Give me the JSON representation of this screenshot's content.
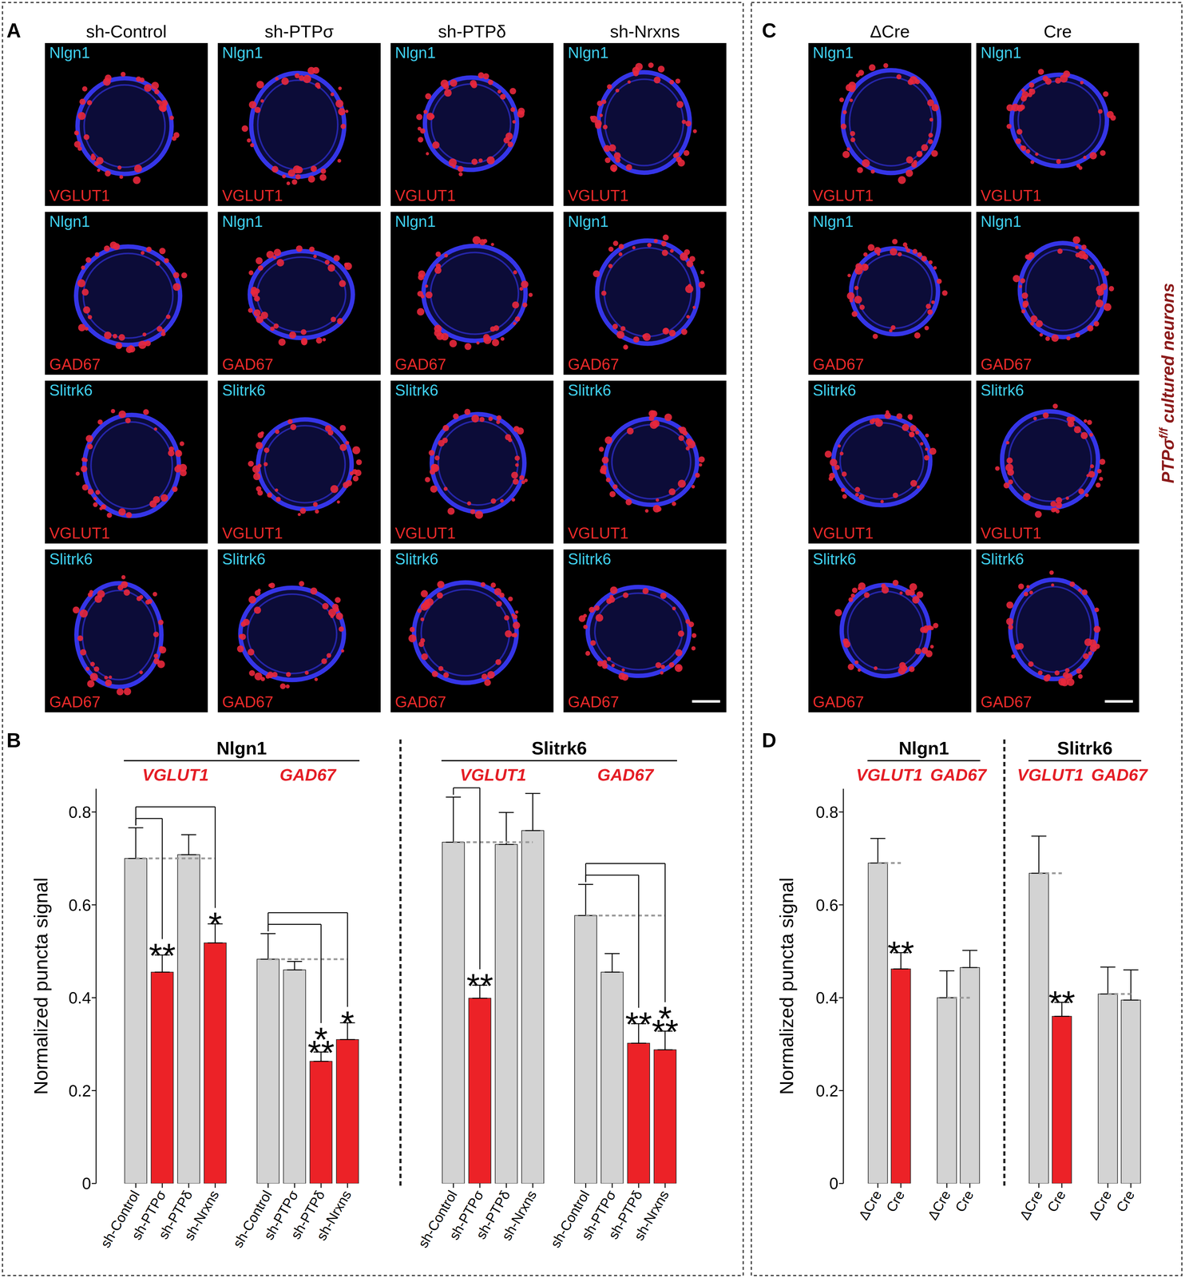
{
  "figure": {
    "panels": [
      {
        "letter": "A",
        "columns": [
          "sh-Control",
          "sh-PTPσ",
          "sh-PTPδ",
          "sh-Nrxns"
        ],
        "rows": [
          {
            "top": "Nlgn1",
            "bottom": "VGLUT1"
          },
          {
            "top": "Nlgn1",
            "bottom": "GAD67"
          },
          {
            "top": "Slitrk6",
            "bottom": "VGLUT1"
          },
          {
            "top": "Slitrk6",
            "bottom": "GAD67"
          }
        ]
      },
      {
        "letter": "C",
        "columns": [
          "ΔCre",
          "Cre"
        ],
        "rows": [
          {
            "top": "Nlgn1",
            "bottom": "VGLUT1"
          },
          {
            "top": "Nlgn1",
            "bottom": "GAD67"
          },
          {
            "top": "Slitrk6",
            "bottom": "VGLUT1"
          },
          {
            "top": "Slitrk6",
            "bottom": "GAD67"
          }
        ],
        "side_label": {
          "base": "PTPσ",
          "superscript": "f/f",
          "text": "cultured neurons"
        }
      }
    ]
  },
  "chart_data": [
    {
      "type": "bar",
      "panel": "B",
      "y_label": "Normalized puncta signal",
      "ylim": [
        0,
        0.85
      ],
      "yticks": [
        0,
        0.2,
        0.4,
        0.6,
        0.8
      ],
      "groups": [
        {
          "title": "Nlgn1",
          "subtitle": "VGLUT1",
          "categories": [
            "sh-Control",
            "sh-PTPσ",
            "sh-PTPδ",
            "sh-Nrxns"
          ],
          "values": [
            0.7,
            0.455,
            0.708,
            0.518
          ],
          "errors": [
            0.066,
            0.037,
            0.043,
            0.041
          ],
          "colors": [
            "#d3d3d3",
            "#ec2227",
            "#d3d3d3",
            "#ec2227"
          ],
          "significance": [
            null,
            "**",
            null,
            "*"
          ]
        },
        {
          "title": "Nlgn1",
          "subtitle": "GAD67",
          "categories": [
            "sh-Control",
            "sh-PTPσ",
            "sh-PTPδ",
            "sh-Nrxns"
          ],
          "values": [
            0.483,
            0.46,
            0.263,
            0.31
          ],
          "errors": [
            0.055,
            0.018,
            0.02,
            0.036
          ],
          "colors": [
            "#d3d3d3",
            "#d3d3d3",
            "#ec2227",
            "#ec2227"
          ],
          "significance": [
            null,
            null,
            "***",
            "*"
          ]
        },
        {
          "title": "Slitrk6",
          "subtitle": "VGLUT1",
          "categories": [
            "sh-Control",
            "sh-PTPσ",
            "sh-PTPδ",
            "sh-Nrxns"
          ],
          "values": [
            0.735,
            0.399,
            0.73,
            0.76
          ],
          "errors": [
            0.097,
            0.028,
            0.069,
            0.08
          ],
          "colors": [
            "#d3d3d3",
            "#ec2227",
            "#d3d3d3",
            "#d3d3d3"
          ],
          "significance": [
            null,
            "**",
            null,
            null
          ]
        },
        {
          "title": "Slitrk6",
          "subtitle": "GAD67",
          "categories": [
            "sh-Control",
            "sh-PTPσ",
            "sh-PTPδ",
            "sh-Nrxns"
          ],
          "values": [
            0.577,
            0.455,
            0.302,
            0.288
          ],
          "errors": [
            0.067,
            0.04,
            0.042,
            0.04
          ],
          "colors": [
            "#d3d3d3",
            "#d3d3d3",
            "#ec2227",
            "#ec2227"
          ],
          "significance": [
            null,
            null,
            "**",
            "***"
          ]
        }
      ]
    },
    {
      "type": "bar",
      "panel": "D",
      "y_label": "Normalized puncta signal",
      "ylim": [
        0,
        0.85
      ],
      "yticks": [
        0,
        0.2,
        0.4,
        0.6,
        0.8
      ],
      "groups": [
        {
          "title": "Nlgn1",
          "subtitle": "VGLUT1",
          "categories": [
            "ΔCre",
            "Cre"
          ],
          "values": [
            0.69,
            0.462
          ],
          "errors": [
            0.053,
            0.035
          ],
          "colors": [
            "#d3d3d3",
            "#ec2227"
          ],
          "significance": [
            null,
            "**"
          ]
        },
        {
          "title": "Nlgn1",
          "subtitle": "GAD67",
          "categories": [
            "ΔCre",
            "Cre"
          ],
          "values": [
            0.4,
            0.465
          ],
          "errors": [
            0.058,
            0.037
          ],
          "colors": [
            "#d3d3d3",
            "#d3d3d3"
          ],
          "significance": [
            null,
            null
          ]
        },
        {
          "title": "Slitrk6",
          "subtitle": "VGLUT1",
          "categories": [
            "ΔCre",
            "Cre"
          ],
          "values": [
            0.668,
            0.36
          ],
          "errors": [
            0.08,
            0.03
          ],
          "colors": [
            "#d3d3d3",
            "#ec2227"
          ],
          "significance": [
            null,
            "**"
          ]
        },
        {
          "title": "Slitrk6",
          "subtitle": "GAD67",
          "categories": [
            "ΔCre",
            "Cre"
          ],
          "values": [
            0.408,
            0.395
          ],
          "errors": [
            0.058,
            0.065
          ],
          "colors": [
            "#d3d3d3",
            "#d3d3d3"
          ],
          "significance": [
            null,
            null
          ]
        }
      ]
    }
  ]
}
